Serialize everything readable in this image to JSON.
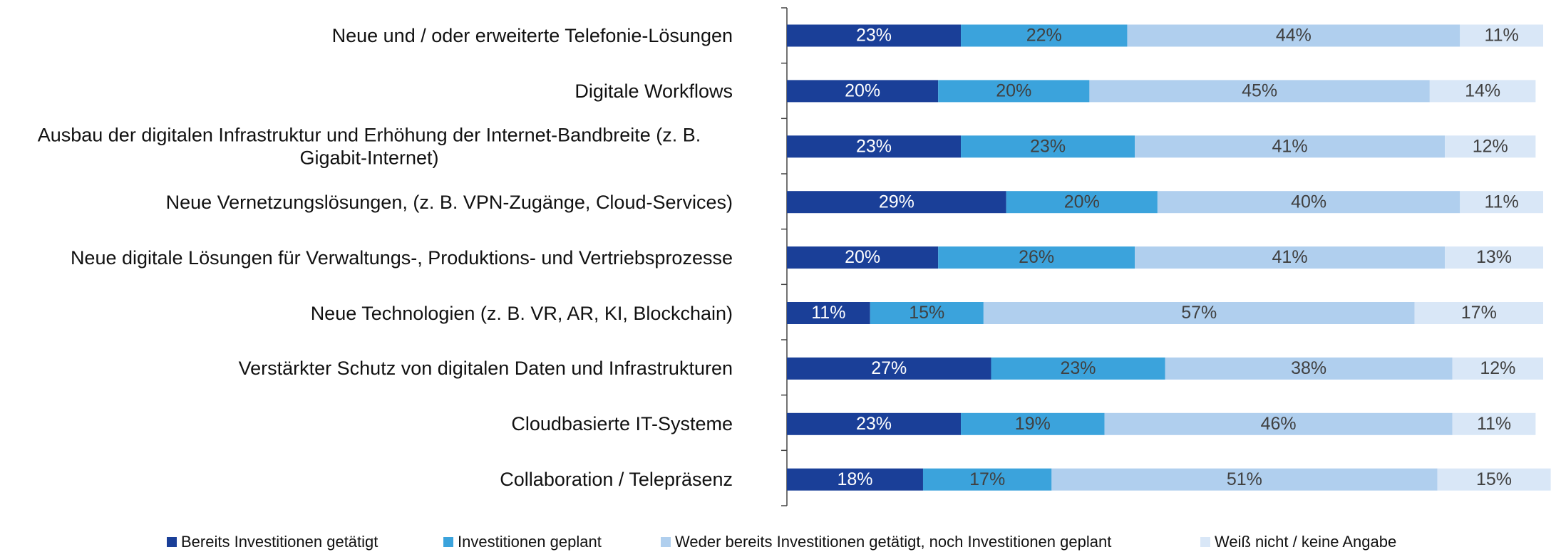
{
  "chart_data": {
    "type": "stacked_barh",
    "categories": [
      "Neue und / oder erweiterte Telefonie-Lösungen",
      "Digitale Workflows",
      "Ausbau der digitalen Infrastruktur und Erhöhung der Internet-Bandbreite (z. B. Gigabit-Internet)",
      "Neue Vernetzungslösungen, (z. B. VPN-Zugänge, Cloud-Services)",
      "Neue digitale Lösungen für Verwaltungs-, Produktions- und Vertriebsprozesse",
      "Neue Technologien (z. B. VR, AR, KI, Blockchain)",
      "Verstärkter Schutz von digitalen Daten und Infrastrukturen",
      "Cloudbasierte IT-Systeme",
      "Collaboration / Telepräsenz"
    ],
    "series": [
      {
        "name": "Bereits Investitionen getätigt",
        "color": "#1a3f98",
        "values": [
          23,
          20,
          23,
          29,
          20,
          11,
          27,
          23,
          18
        ],
        "value_labels": [
          "23%",
          "20%",
          "23%",
          "29%",
          "20%",
          "11%",
          "27%",
          "23%",
          "18%"
        ]
      },
      {
        "name": "Investitionen geplant",
        "color": "#3ba3dc",
        "values": [
          22,
          20,
          23,
          20,
          26,
          15,
          23,
          19,
          17
        ],
        "value_labels": [
          "22%",
          "20%",
          "23%",
          "20%",
          "26%",
          "15%",
          "23%",
          "19%",
          "17%"
        ]
      },
      {
        "name": "Weder bereits Investitionen getätigt, noch Investitionen geplant",
        "color": "#b0cfee",
        "values": [
          44,
          45,
          41,
          40,
          41,
          57,
          38,
          46,
          51
        ],
        "value_labels": [
          "44%",
          "45%",
          "41%",
          "40%",
          "41%",
          "57%",
          "38%",
          "46%",
          "51%"
        ]
      },
      {
        "name": "Weiß nicht / keine Angabe",
        "color": "#d9e7f7",
        "values": [
          11,
          14,
          12,
          11,
          13,
          17,
          12,
          11,
          15
        ],
        "value_labels": [
          "11%",
          "14%",
          "12%",
          "11%",
          "13%",
          "17%",
          "12%",
          "11%",
          "15%"
        ]
      }
    ],
    "xlim": [
      0,
      100
    ],
    "legend": "bottom"
  }
}
